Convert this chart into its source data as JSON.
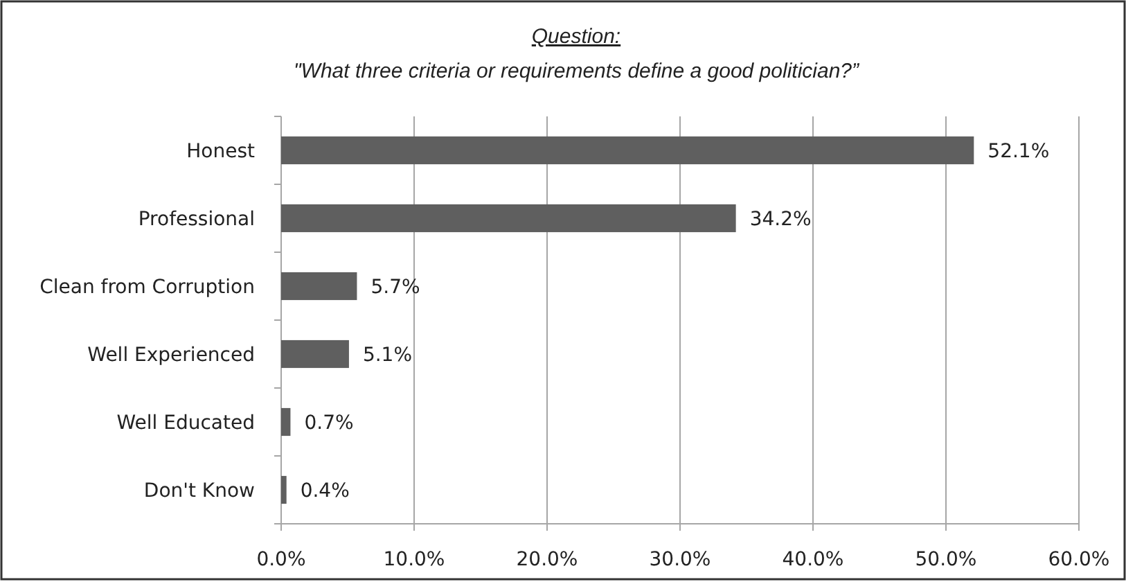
{
  "chart_data": {
    "type": "bar",
    "orientation": "horizontal",
    "title": "Question:",
    "subtitle": "\"What three criteria or requirements define a good politician?”",
    "categories": [
      "Honest",
      "Professional",
      "Clean from Corruption",
      "Well Experienced",
      "Well Educated",
      "Don't Know"
    ],
    "values": [
      52.1,
      34.2,
      5.7,
      5.1,
      0.7,
      0.4
    ],
    "color": "#5f5f5f",
    "value_labels": [
      "52.1%",
      "34.2%",
      "5.7%",
      "5.1%",
      "0.7%",
      "0.4%"
    ],
    "xlim": [
      0,
      60
    ],
    "xticks": [
      {
        "value": 0,
        "label": "0.0%"
      },
      {
        "value": 10,
        "label": "10.0%"
      },
      {
        "value": 20,
        "label": "20.0%"
      },
      {
        "value": 30,
        "label": "30.0%"
      },
      {
        "value": 40,
        "label": "40.0%"
      },
      {
        "value": 50,
        "label": "50.0%"
      },
      {
        "value": 60,
        "label": "60.0%"
      }
    ],
    "grid": "x"
  }
}
